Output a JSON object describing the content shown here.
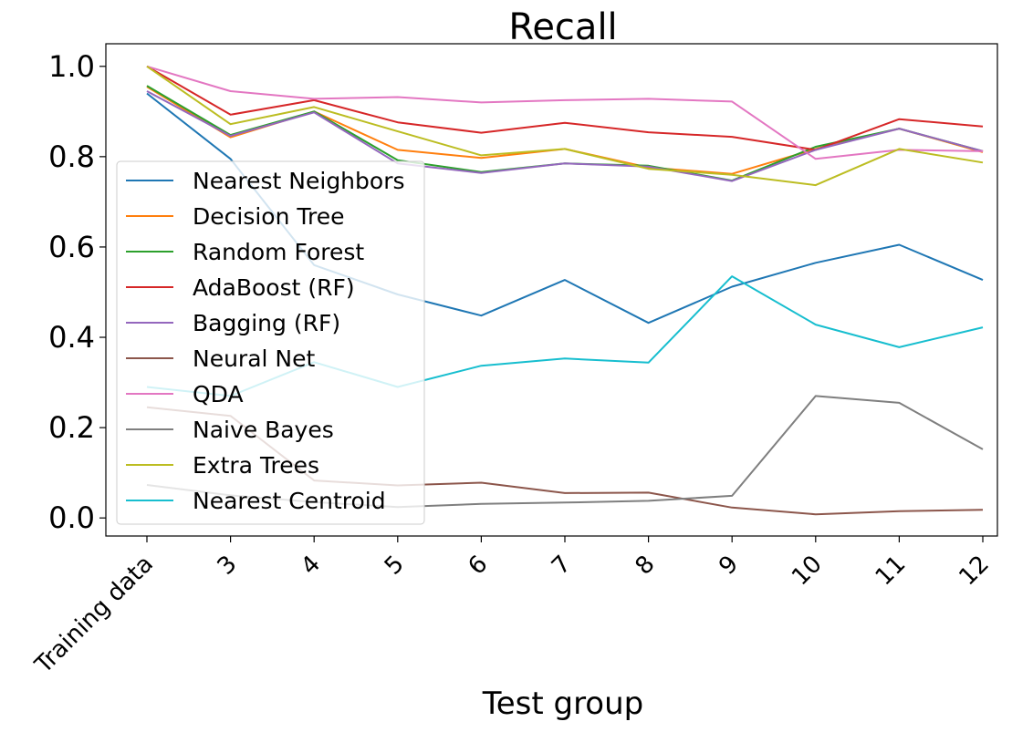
{
  "chart_data": {
    "type": "line",
    "title": "Recall",
    "xlabel": "Test group",
    "ylabel": "",
    "categories": [
      "Training data",
      "3",
      "4",
      "5",
      "6",
      "7",
      "8",
      "9",
      "10",
      "11",
      "12"
    ],
    "ylim": [
      -0.04,
      1.05
    ],
    "yticks": [
      "0.0",
      "0.2",
      "0.4",
      "0.6",
      "0.8",
      "1.0"
    ],
    "grid": false,
    "legend_position": "center-left",
    "series": [
      {
        "name": "Nearest Neighbors",
        "color": "#1f77b4",
        "values": [
          0.94,
          0.795,
          0.56,
          0.495,
          0.448,
          0.527,
          0.432,
          0.512,
          0.565,
          0.605,
          0.527
        ]
      },
      {
        "name": "Decision Tree",
        "color": "#ff7f0e",
        "values": [
          0.955,
          0.843,
          0.9,
          0.815,
          0.797,
          0.817,
          0.776,
          0.762,
          0.817,
          0.862,
          0.81
        ]
      },
      {
        "name": "Random Forest",
        "color": "#2ca02c",
        "values": [
          0.957,
          0.848,
          0.9,
          0.792,
          0.766,
          0.785,
          0.78,
          0.747,
          0.822,
          0.862,
          0.812
        ]
      },
      {
        "name": "AdaBoost (RF)",
        "color": "#d62728",
        "values": [
          1.0,
          0.893,
          0.925,
          0.876,
          0.853,
          0.875,
          0.854,
          0.844,
          0.815,
          0.883,
          0.867
        ]
      },
      {
        "name": "Bagging (RF)",
        "color": "#9467bd",
        "values": [
          0.945,
          0.846,
          0.898,
          0.785,
          0.764,
          0.785,
          0.778,
          0.746,
          0.815,
          0.862,
          0.812
        ]
      },
      {
        "name": "Neural Net",
        "color": "#8c564b",
        "values": [
          0.245,
          0.226,
          0.083,
          0.072,
          0.078,
          0.055,
          0.056,
          0.023,
          0.008,
          0.015,
          0.018
        ]
      },
      {
        "name": "QDA",
        "color": "#e377c2",
        "values": [
          1.0,
          0.945,
          0.928,
          0.932,
          0.92,
          0.925,
          0.928,
          0.922,
          0.795,
          0.815,
          0.812
        ]
      },
      {
        "name": "Naive Bayes",
        "color": "#7f7f7f",
        "values": [
          0.073,
          0.05,
          0.035,
          0.024,
          0.031,
          0.034,
          0.038,
          0.049,
          0.27,
          0.255,
          0.152
        ]
      },
      {
        "name": "Extra Trees",
        "color": "#bcbd22",
        "values": [
          1.0,
          0.872,
          0.91,
          0.856,
          0.803,
          0.817,
          0.773,
          0.76,
          0.737,
          0.817,
          0.787
        ]
      },
      {
        "name": "Nearest Centroid",
        "color": "#17becf",
        "values": [
          0.29,
          0.27,
          0.345,
          0.29,
          0.337,
          0.353,
          0.344,
          0.535,
          0.428,
          0.378,
          0.422
        ]
      }
    ]
  }
}
